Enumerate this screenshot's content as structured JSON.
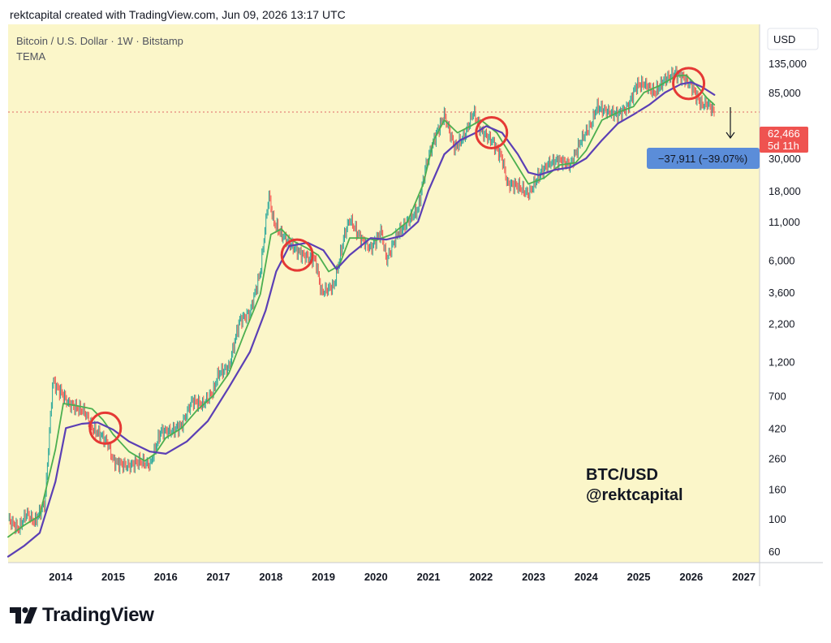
{
  "header": {
    "title": "rektcapital created with TradingView.com, Jun 09, 2026 13:17 UTC"
  },
  "footer": {
    "brand": "TradingView"
  },
  "colors": {
    "background": "#fbf6c9",
    "up_candle": "#26a69a",
    "down_candle": "#ef5350",
    "fast_tema": "#4caf50",
    "slow_tema": "#5b3fb5",
    "price_line": "#e06666",
    "circle": "#e53935",
    "price_label_bg": "#ef5350",
    "drop_label_bg": "#5b8dd9"
  },
  "chart_data": {
    "type": "line",
    "title": "Bitcoin / U.S. Dollar · 1W · Bitstamp",
    "subtitle": "TEMA",
    "y_axis": {
      "unit": "USD",
      "scale": "log",
      "range": [
        50,
        250000
      ],
      "ticks": [
        60,
        100,
        160,
        260,
        420,
        700,
        1200,
        2200,
        3600,
        6000,
        11000,
        18000,
        30000,
        85000,
        135000
      ],
      "tick_labels": [
        "60",
        "100",
        "160",
        "260",
        "420",
        "700",
        "1,200",
        "2,200",
        "3,600",
        "6,000",
        "11,000",
        "18,000",
        "30,000",
        "85,000",
        "135,000"
      ]
    },
    "x_axis": {
      "range": [
        2013.0,
        2027.3
      ],
      "tick_labels": [
        "2014",
        "2015",
        "2016",
        "2017",
        "2018",
        "2019",
        "2020",
        "2021",
        "2022",
        "2023",
        "2024",
        "2025",
        "2026",
        "2027"
      ]
    },
    "series": [
      {
        "kind": "price",
        "x": [
          2013.0,
          2013.2,
          2013.35,
          2013.5,
          2013.7,
          2013.85,
          2013.92,
          2014.0,
          2014.15,
          2014.3,
          2014.45,
          2014.6,
          2014.75,
          2014.9,
          2015.0,
          2015.1,
          2015.3,
          2015.5,
          2015.7,
          2015.9,
          2016.1,
          2016.3,
          2016.5,
          2016.7,
          2016.9,
          2017.0,
          2017.2,
          2017.4,
          2017.6,
          2017.8,
          2017.96,
          2018.05,
          2018.2,
          2018.4,
          2018.6,
          2018.85,
          2018.96,
          2019.2,
          2019.4,
          2019.5,
          2019.7,
          2019.9,
          2020.1,
          2020.2,
          2020.4,
          2020.6,
          2020.8,
          2020.95,
          2021.1,
          2021.3,
          2021.5,
          2021.7,
          2021.85,
          2022.0,
          2022.2,
          2022.4,
          2022.5,
          2022.7,
          2022.9,
          2023.1,
          2023.3,
          2023.5,
          2023.7,
          2023.9,
          2024.1,
          2024.2,
          2024.4,
          2024.6,
          2024.8,
          2024.95,
          2025.1,
          2025.3,
          2025.5,
          2025.7,
          2025.85,
          2026.0,
          2026.1,
          2026.2,
          2026.3,
          2026.44
        ],
        "values": [
          100,
          85,
          110,
          95,
          130,
          900,
          800,
          750,
          620,
          580,
          550,
          420,
          380,
          330,
          250,
          240,
          230,
          250,
          235,
          400,
          400,
          440,
          650,
          610,
          750,
          1000,
          1100,
          2300,
          2600,
          5000,
          17000,
          11000,
          9000,
          7500,
          6500,
          6000,
          3600,
          4000,
          9000,
          11500,
          8500,
          7200,
          9500,
          6000,
          9000,
          11000,
          13500,
          27000,
          40000,
          60000,
          35000,
          44000,
          63000,
          46000,
          40000,
          30000,
          20000,
          19500,
          17000,
          23000,
          28000,
          29000,
          27000,
          40000,
          52000,
          68000,
          63000,
          60000,
          68000,
          95000,
          98000,
          85000,
          105000,
          115000,
          108000,
          95000,
          80000,
          70000,
          72000,
          62466
        ]
      },
      {
        "name": "TEMA (fast)",
        "x": [
          2013.0,
          2013.3,
          2013.6,
          2013.9,
          2014.05,
          2014.3,
          2014.6,
          2014.8,
          2015.0,
          2015.3,
          2015.6,
          2015.8,
          2016.0,
          2016.3,
          2016.6,
          2016.9,
          2017.2,
          2017.5,
          2017.8,
          2018.0,
          2018.2,
          2018.4,
          2018.7,
          2018.9,
          2019.1,
          2019.3,
          2019.5,
          2019.8,
          2020.0,
          2020.3,
          2020.6,
          2020.9,
          2021.1,
          2021.3,
          2021.55,
          2021.8,
          2022.0,
          2022.3,
          2022.6,
          2022.9,
          2023.2,
          2023.5,
          2023.8,
          2024.0,
          2024.3,
          2024.6,
          2024.9,
          2025.1,
          2025.4,
          2025.7,
          2025.9,
          2026.1,
          2026.3,
          2026.44
        ],
        "values": [
          75,
          90,
          105,
          300,
          620,
          600,
          570,
          480,
          380,
          290,
          250,
          280,
          360,
          420,
          560,
          700,
          1000,
          1900,
          3500,
          9000,
          9800,
          8200,
          7200,
          6500,
          5000,
          5500,
          8500,
          8500,
          8200,
          9000,
          11000,
          20000,
          40000,
          55000,
          45000,
          50000,
          55000,
          45000,
          30000,
          20000,
          22000,
          27000,
          28000,
          34000,
          55000,
          62000,
          68000,
          85000,
          95000,
          110000,
          112000,
          95000,
          78000,
          70000
        ]
      },
      {
        "name": "TEMA (slow)",
        "x": [
          2013.0,
          2013.3,
          2013.6,
          2013.9,
          2014.1,
          2014.4,
          2014.7,
          2015.0,
          2015.3,
          2015.7,
          2016.0,
          2016.4,
          2016.8,
          2017.2,
          2017.6,
          2017.9,
          2018.1,
          2018.35,
          2018.7,
          2019.0,
          2019.25,
          2019.5,
          2019.9,
          2020.2,
          2020.5,
          2020.8,
          2021.0,
          2021.3,
          2021.6,
          2021.9,
          2022.1,
          2022.4,
          2022.7,
          2022.9,
          2023.1,
          2023.4,
          2023.7,
          2024.0,
          2024.3,
          2024.6,
          2024.9,
          2025.2,
          2025.5,
          2025.8,
          2026.0,
          2026.2,
          2026.44
        ],
        "values": [
          55,
          65,
          80,
          180,
          420,
          450,
          460,
          410,
          340,
          290,
          280,
          340,
          470,
          800,
          1400,
          2700,
          5000,
          7500,
          7900,
          7000,
          5200,
          6500,
          8500,
          8300,
          8800,
          11000,
          18000,
          32000,
          40000,
          45000,
          50000,
          45000,
          32000,
          24000,
          23000,
          25000,
          26000,
          30000,
          40000,
          52000,
          60000,
          70000,
          85000,
          97000,
          100000,
          93000,
          82000
        ]
      }
    ],
    "current_price": {
      "label": "62,466",
      "countdown": "5d 11h",
      "value": 62466
    },
    "drop_annotation": {
      "label": "−37,911 (−39.07%)"
    },
    "circled_points": [
      {
        "x": 2014.85,
        "y": 420
      },
      {
        "x": 2018.5,
        "y": 6500
      },
      {
        "x": 2022.2,
        "y": 45000
      },
      {
        "x": 2025.95,
        "y": 98000
      }
    ],
    "watermark": {
      "line1": "BTC/USD",
      "line2": "@rektcapital"
    }
  }
}
